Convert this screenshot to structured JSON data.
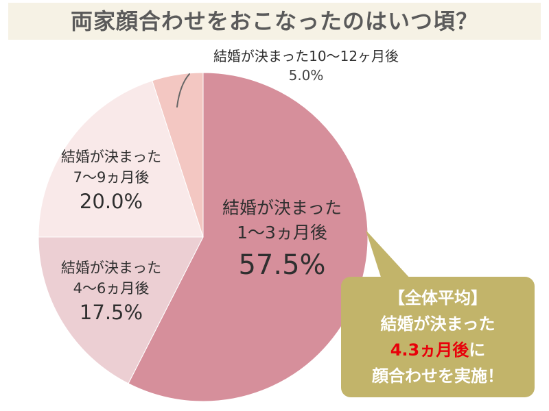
{
  "title": "両家顔合わせをおこなったのはいつ頃？",
  "colors": {
    "slice_1_3": "#d68f9b",
    "slice_4_6": "#eccfd3",
    "slice_7_9": "#f9e9e9",
    "slice_10_12": "#f3c7c2",
    "callout_bg": "#c2b46a",
    "highlight": "#e8000a",
    "title_bg": "#f6f2e5"
  },
  "chart_data": {
    "type": "pie",
    "title": "両家顔合わせをおこなったのはいつ頃？",
    "slices": [
      {
        "label_line1": "結婚が決まった",
        "label_line2": "1〜3ヵ月後",
        "value": 57.5,
        "value_label": "57.5%"
      },
      {
        "label_line1": "結婚が決まった",
        "label_line2": "4〜6ヵ月後",
        "value": 17.5,
        "value_label": "17.5%"
      },
      {
        "label_line1": "結婚が決まった",
        "label_line2": "7〜9ヵ月後",
        "value": 20.0,
        "value_label": "20.0%"
      },
      {
        "label_line1": "結婚が決まった",
        "label_line2": "10〜12ヶ月後",
        "value": 5.0,
        "value_label": "5.0%"
      }
    ]
  },
  "callout": {
    "line1": "【全体平均】",
    "line2": "結婚が決まった",
    "highlight": "4.3ヵ月後",
    "line3_suffix": "に",
    "line4": "顔合わせを実施！"
  }
}
